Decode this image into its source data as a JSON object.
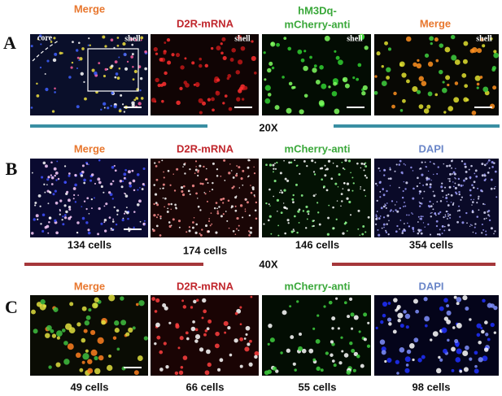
{
  "rows": [
    {
      "label": "A",
      "panels": [
        {
          "title": "Merge",
          "notes": [
            "core",
            "shell"
          ]
        },
        {
          "title": "D2R-mRNA",
          "notes": [
            "shell"
          ]
        },
        {
          "title_lines": [
            "hM3Dq-",
            "mCherry-anti"
          ],
          "notes": [
            "shell"
          ]
        },
        {
          "title": "Merge",
          "notes": [
            "shell"
          ]
        }
      ]
    },
    {
      "label": "B",
      "panels": [
        {
          "title": "Merge",
          "count": "134 cells"
        },
        {
          "title": "D2R-mRNA",
          "count": "174 cells"
        },
        {
          "title": "mCherry-anti",
          "count": "146 cells"
        },
        {
          "title": "DAPI",
          "count": "354 cells"
        }
      ]
    },
    {
      "label": "C",
      "panels": [
        {
          "title": "Merge",
          "count": "49 cells"
        },
        {
          "title": "D2R-mRNA",
          "count": "66 cells"
        },
        {
          "title": "mCherry-anti",
          "count": "55 cells"
        },
        {
          "title": "DAPI",
          "count": "98 cells"
        }
      ]
    }
  ],
  "magnifications": [
    "20X",
    "40X"
  ]
}
